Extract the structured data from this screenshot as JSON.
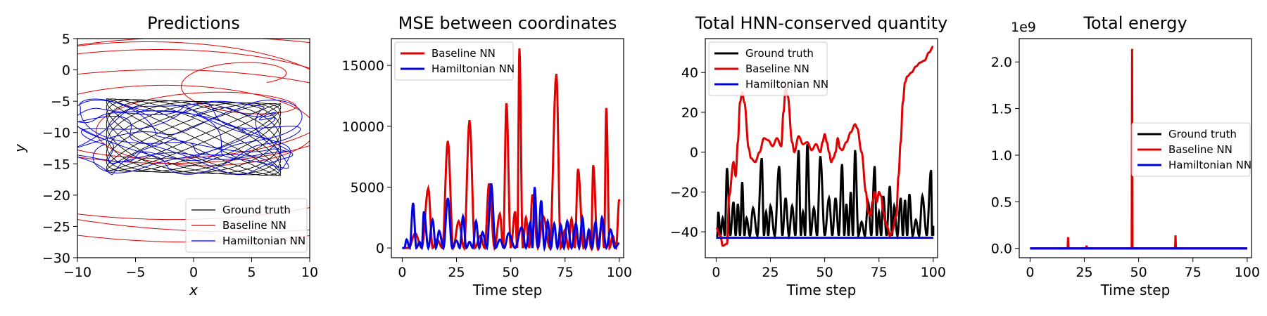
{
  "colors": {
    "ground_truth": "#000000",
    "baseline": "#e00000",
    "hamiltonian": "#0000e0"
  },
  "chart_data": [
    {
      "type": "line",
      "title": "Predictions",
      "xlabel": "x",
      "ylabel": "y",
      "xlim": [
        -10,
        10
      ],
      "ylim": [
        -30,
        5
      ],
      "xticks": [
        -10,
        -5,
        0,
        5,
        10
      ],
      "yticks": [
        5,
        0,
        -5,
        -10,
        -15,
        -20,
        -25,
        -30
      ],
      "legend": {
        "position": "lower-right",
        "entries": [
          "Ground truth",
          "Baseline NN",
          "Hamiltonian NN"
        ]
      },
      "series": [
        {
          "name": "Ground truth",
          "kind": "lissajous",
          "x_range": [
            -7.5,
            7.5
          ],
          "y_range": [
            -16.5,
            -5
          ]
        },
        {
          "name": "Baseline NN",
          "kind": "spiral",
          "center": [
            0,
            -4
          ],
          "radius_range": [
            2,
            27
          ]
        },
        {
          "name": "Hamiltonian NN",
          "kind": "wobble",
          "center": [
            -1,
            -10.5
          ],
          "x_range": [
            -10,
            10
          ],
          "y_range": [
            -16,
            -3
          ]
        }
      ]
    },
    {
      "type": "line",
      "title": "MSE between coordinates",
      "xlabel": "Time step",
      "xlim": [
        -5,
        102
      ],
      "ylim": [
        -800,
        17200
      ],
      "xticks": [
        0,
        25,
        50,
        75,
        100
      ],
      "yticks": [
        0,
        5000,
        10000,
        15000
      ],
      "legend": {
        "position": "upper-left",
        "entries": [
          "Baseline NN",
          "Hamiltonian NN"
        ]
      },
      "series": [
        {
          "name": "Baseline NN",
          "peaks": [
            [
              0,
              0
            ],
            [
              6,
              1200
            ],
            [
              12,
              4900
            ],
            [
              16,
              700
            ],
            [
              21,
              8800
            ],
            [
              26,
              2200
            ],
            [
              31,
              10500
            ],
            [
              36,
              1000
            ],
            [
              40,
              5300
            ],
            [
              45,
              2800
            ],
            [
              48,
              11900
            ],
            [
              52,
              3000
            ],
            [
              54,
              16400
            ],
            [
              57,
              2500
            ],
            [
              60,
              4400
            ],
            [
              65,
              2600
            ],
            [
              71,
              14300
            ],
            [
              75,
              1500
            ],
            [
              78,
              2400
            ],
            [
              81,
              6500
            ],
            [
              86,
              1000
            ],
            [
              88,
              6800
            ],
            [
              92,
              2000
            ],
            [
              94,
              11500
            ],
            [
              97,
              1000
            ],
            [
              100,
              4000
            ]
          ]
        },
        {
          "name": "Hamiltonian NN",
          "peaks": [
            [
              0,
              0
            ],
            [
              2,
              700
            ],
            [
              5,
              3700
            ],
            [
              8,
              500
            ],
            [
              10,
              3000
            ],
            [
              14,
              2300
            ],
            [
              17,
              1400
            ],
            [
              21,
              4100
            ],
            [
              25,
              600
            ],
            [
              28,
              2600
            ],
            [
              31,
              500
            ],
            [
              34,
              2200
            ],
            [
              37,
              1300
            ],
            [
              41,
              5300
            ],
            [
              45,
              700
            ],
            [
              49,
              1200
            ],
            [
              55,
              1700
            ],
            [
              59,
              2100
            ],
            [
              61,
              5000
            ],
            [
              64,
              3900
            ],
            [
              67,
              2200
            ],
            [
              70,
              2000
            ],
            [
              73,
              1900
            ],
            [
              76,
              2200
            ],
            [
              80,
              2000
            ],
            [
              83,
              2500
            ],
            [
              86,
              1500
            ],
            [
              89,
              2100
            ],
            [
              92,
              2500
            ],
            [
              96,
              1500
            ],
            [
              100,
              400
            ]
          ]
        }
      ]
    },
    {
      "type": "line",
      "title": "Total HNN-conserved quantity",
      "xlabel": "Time step",
      "xlim": [
        -5,
        102
      ],
      "ylim": [
        -53,
        57
      ],
      "xticks": [
        0,
        25,
        50,
        75,
        100
      ],
      "yticks": [
        40,
        20,
        0,
        -20,
        -40
      ],
      "legend": {
        "position": "upper-left",
        "entries": [
          "Ground truth",
          "Baseline NN",
          "Hamiltonian NN"
        ]
      },
      "series": [
        {
          "name": "Ground truth",
          "baseline": -42,
          "peaks": [
            [
              1,
              -30
            ],
            [
              3,
              -33
            ],
            [
              5,
              -8
            ],
            [
              8,
              -25
            ],
            [
              10,
              -26
            ],
            [
              12,
              -15
            ],
            [
              14,
              -33
            ],
            [
              17,
              -28
            ],
            [
              21,
              -3
            ],
            [
              23,
              -30
            ],
            [
              25,
              -27
            ],
            [
              29,
              -7
            ],
            [
              32,
              -23
            ],
            [
              35,
              -27
            ],
            [
              38,
              1
            ],
            [
              40,
              -30
            ],
            [
              42,
              4
            ],
            [
              45,
              -28
            ],
            [
              48,
              -2
            ],
            [
              52,
              -23
            ],
            [
              55,
              -23
            ],
            [
              58,
              -6
            ],
            [
              60,
              -26
            ],
            [
              62,
              -20
            ],
            [
              64,
              1
            ],
            [
              67,
              -35
            ],
            [
              70,
              -25
            ],
            [
              73,
              -7
            ],
            [
              75,
              -30
            ],
            [
              77,
              -22
            ],
            [
              80,
              -17
            ],
            [
              82,
              -27
            ],
            [
              85,
              -23
            ],
            [
              87,
              -24
            ],
            [
              89,
              -21
            ],
            [
              92,
              -34
            ],
            [
              95,
              -22
            ],
            [
              99,
              -9
            ],
            [
              100,
              -37
            ]
          ]
        },
        {
          "name": "Baseline NN",
          "values": [
            [
              0,
              -38
            ],
            [
              2,
              -42
            ],
            [
              3,
              -47
            ],
            [
              5,
              -46
            ],
            [
              6,
              -22
            ],
            [
              8,
              -5
            ],
            [
              9,
              -12
            ],
            [
              10,
              5
            ],
            [
              11,
              25
            ],
            [
              12,
              30
            ],
            [
              13,
              25
            ],
            [
              15,
              2
            ],
            [
              16,
              -3
            ],
            [
              18,
              -5
            ],
            [
              20,
              0
            ],
            [
              22,
              7
            ],
            [
              24,
              6
            ],
            [
              26,
              3
            ],
            [
              28,
              7
            ],
            [
              30,
              3
            ],
            [
              31,
              20
            ],
            [
              32,
              32
            ],
            [
              33,
              28
            ],
            [
              35,
              5
            ],
            [
              36,
              0
            ],
            [
              38,
              8
            ],
            [
              40,
              4
            ],
            [
              42,
              5
            ],
            [
              44,
              1
            ],
            [
              46,
              4
            ],
            [
              48,
              0
            ],
            [
              49,
              5
            ],
            [
              50,
              9
            ],
            [
              51,
              5
            ],
            [
              52,
              0
            ],
            [
              53,
              -5
            ],
            [
              54,
              -3
            ],
            [
              55,
              0
            ],
            [
              56,
              7
            ],
            [
              57,
              2
            ],
            [
              58,
              1
            ],
            [
              60,
              5
            ],
            [
              62,
              10
            ],
            [
              64,
              14
            ],
            [
              65,
              12
            ],
            [
              67,
              0
            ],
            [
              69,
              -20
            ],
            [
              70,
              -30
            ],
            [
              71,
              -32
            ],
            [
              72,
              -25
            ],
            [
              73,
              -20
            ],
            [
              74,
              -25
            ],
            [
              75,
              -20
            ],
            [
              76,
              -22
            ],
            [
              77,
              -30
            ],
            [
              78,
              -35
            ],
            [
              79,
              -38
            ],
            [
              80,
              -42
            ],
            [
              81,
              -40
            ],
            [
              83,
              -32
            ],
            [
              84,
              -12
            ],
            [
              85,
              5
            ],
            [
              86,
              25
            ],
            [
              87,
              35
            ],
            [
              88,
              38
            ],
            [
              90,
              40
            ],
            [
              92,
              43
            ],
            [
              94,
              45
            ],
            [
              96,
              46
            ],
            [
              98,
              50
            ],
            [
              100,
              53
            ]
          ]
        },
        {
          "name": "Hamiltonian NN",
          "values": [
            [
              0,
              -43
            ],
            [
              100,
              -43
            ]
          ]
        }
      ]
    },
    {
      "type": "line",
      "title": "Total energy",
      "xlabel": "Time step",
      "scale_label": "1e9",
      "xlim": [
        -5,
        102
      ],
      "ylim": [
        -0.1,
        2.25
      ],
      "xticks": [
        0,
        25,
        50,
        75,
        100
      ],
      "yticks": [
        2.0,
        1.5,
        1.0,
        0.5,
        0.0
      ],
      "legend": {
        "position": "center-right",
        "entries": [
          "Ground truth",
          "Baseline NN",
          "Hamiltonian NN"
        ]
      },
      "series": [
        {
          "name": "Ground truth",
          "values": [
            [
              0,
              0
            ],
            [
              100,
              0
            ]
          ]
        },
        {
          "name": "Baseline NN",
          "spikes": [
            [
              17.5,
              0.12
            ],
            [
              26,
              0.03
            ],
            [
              47,
              2.14
            ],
            [
              67,
              0.14
            ]
          ]
        },
        {
          "name": "Hamiltonian NN",
          "values": [
            [
              0,
              0
            ],
            [
              100,
              0
            ]
          ]
        }
      ]
    }
  ]
}
